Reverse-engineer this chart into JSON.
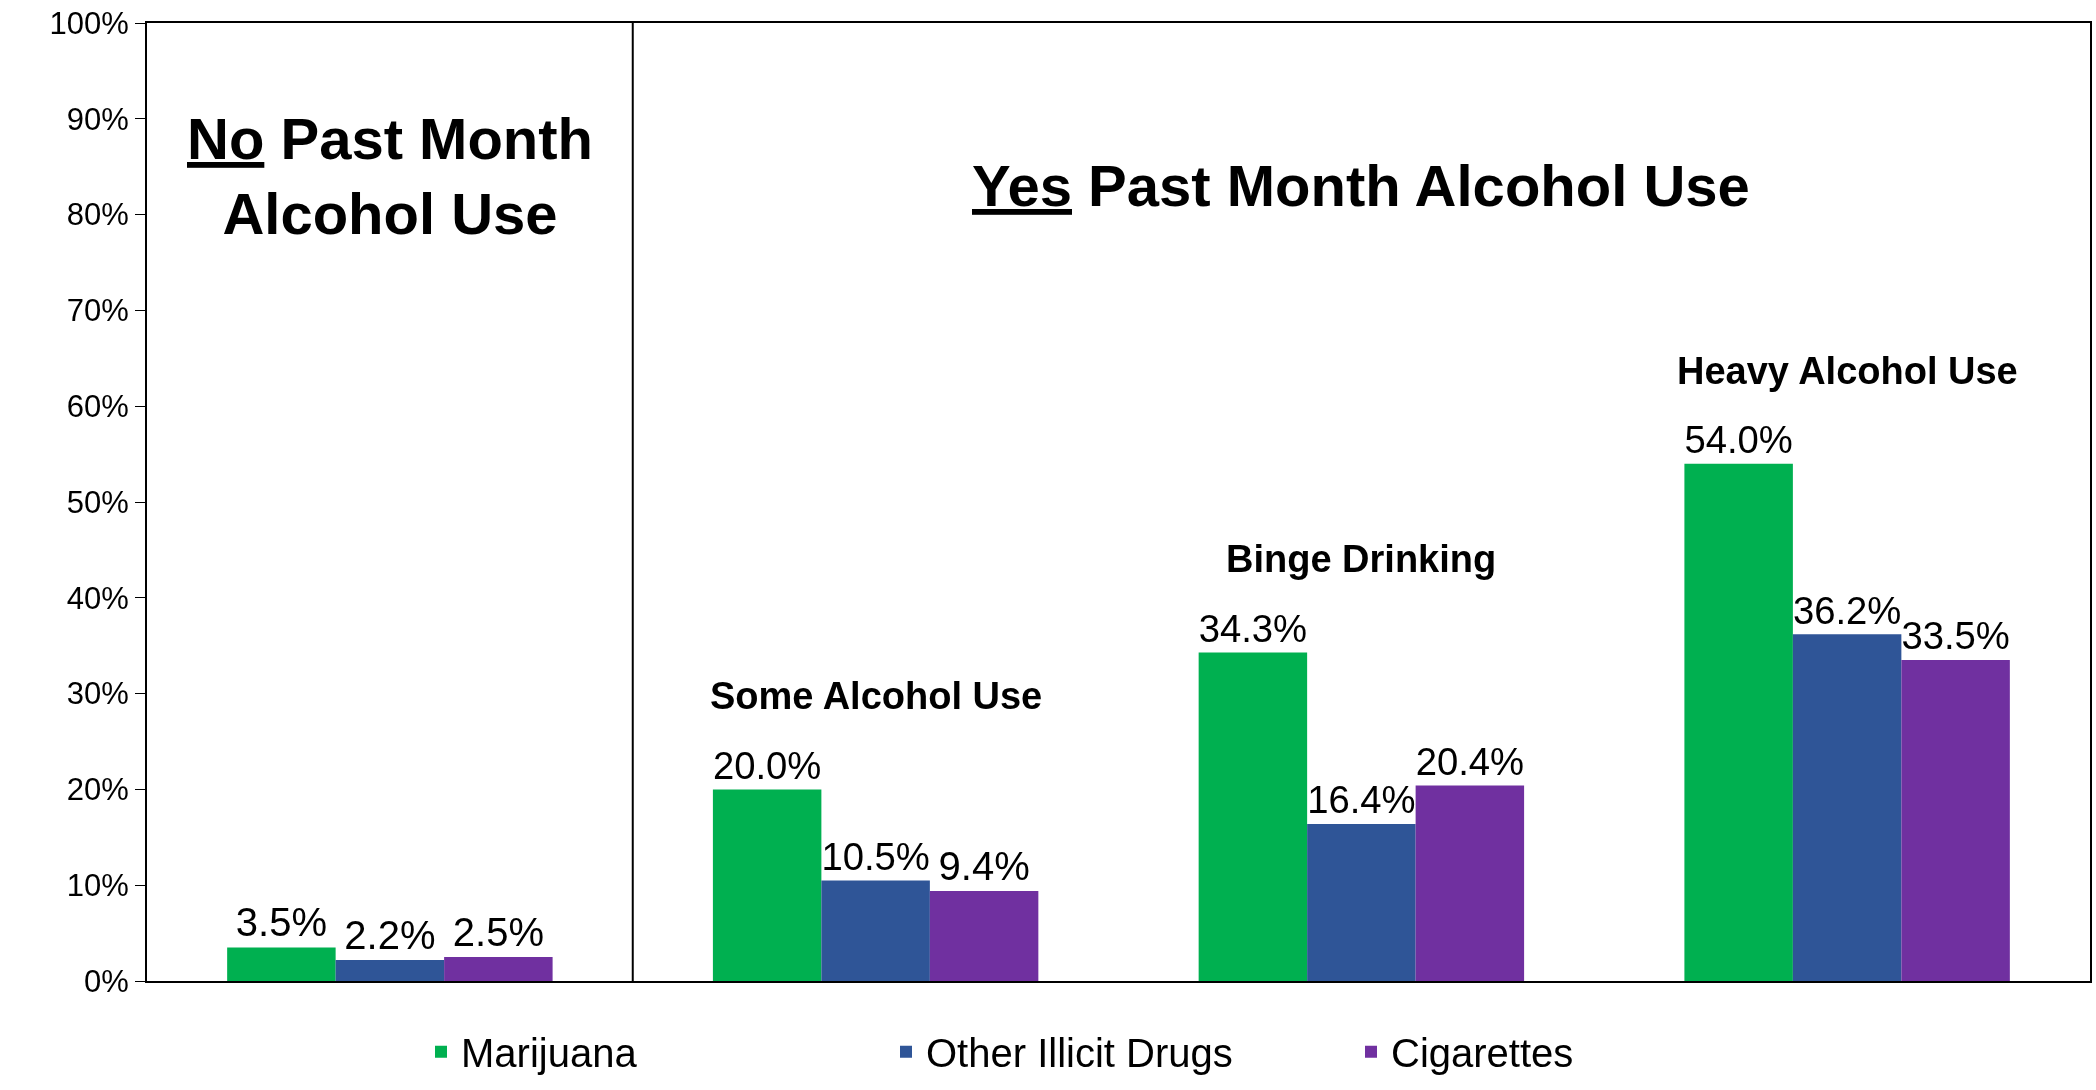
{
  "chart_data": {
    "type": "bar",
    "categories": [
      null,
      "Some Alcohol Use",
      "Binge Drinking",
      "Heavy Alcohol Use"
    ],
    "series": [
      {
        "name": "Marijuana",
        "color": "#00b050",
        "values": [
          3.5,
          20.0,
          34.3,
          54.0
        ],
        "value_labels": [
          "3.5%",
          "20.0%",
          "34.3%",
          "54.0%"
        ]
      },
      {
        "name": "Other Illicit Drugs",
        "color": "#2f5597",
        "values": [
          2.2,
          10.5,
          16.4,
          36.2
        ],
        "value_labels": [
          "2.2%",
          "10.5%",
          "16.4%",
          "36.2%"
        ]
      },
      {
        "name": "Cigarettes",
        "color": "#7030a0",
        "values": [
          2.5,
          9.4,
          20.4,
          33.5
        ],
        "value_labels": [
          "2.5%",
          "9.4%",
          "20.4%",
          "33.5%"
        ]
      }
    ],
    "annotations": [
      "No Past Month Alcohol Use",
      "Yes Past Month Alcohol Use"
    ],
    "ylim": [
      0,
      100
    ],
    "yticks": [
      {
        "value": 0,
        "label": "0%"
      },
      {
        "value": 10,
        "label": "10%"
      },
      {
        "value": 20,
        "label": "20%"
      },
      {
        "value": 30,
        "label": "30%"
      },
      {
        "value": 40,
        "label": "40%"
      },
      {
        "value": 50,
        "label": "50%"
      },
      {
        "value": 60,
        "label": "60%"
      },
      {
        "value": 70,
        "label": "70%"
      },
      {
        "value": 80,
        "label": "80%"
      },
      {
        "value": 90,
        "label": "90%"
      },
      {
        "value": 100,
        "label": "100%"
      }
    ],
    "tick_labels": "y",
    "grid": false,
    "legend": "bottom"
  }
}
